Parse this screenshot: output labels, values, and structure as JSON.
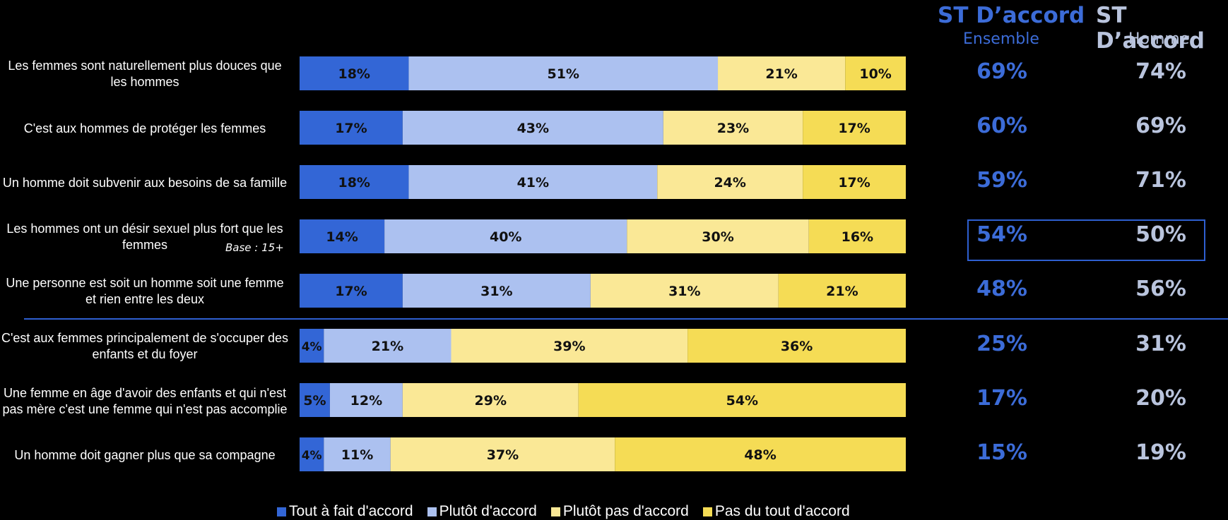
{
  "headers": {
    "ensemble": {
      "title": "ST D’accord",
      "sub": "Ensemble"
    },
    "homme": {
      "title": "ST D’accord",
      "sub": "Homme"
    }
  },
  "base_note": "Base : 15+",
  "colors": {
    "tout_a_fait": "#3366D6",
    "plutot": "#ACC1F0",
    "plutot_pas": "#FAE896",
    "pas_du_tout": "#F5DC55",
    "ensemble_text": "#3C6CD8",
    "homme_text": "#B9C4DD"
  },
  "chart_data": {
    "type": "bar",
    "orientation": "horizontal-stacked-100",
    "categories": [
      "Les femmes sont naturellement plus douces que les hommes",
      "C'est aux hommes de protéger les femmes",
      "Un homme doit subvenir aux besoins de sa famille",
      "Les hommes ont un désir sexuel plus fort que les femmes",
      "Une personne est soit un homme soit une femme et rien entre les deux",
      "C'est aux femmes principalement de s'occuper des enfants et du foyer",
      "Une femme en âge d'avoir des enfants et qui n'est pas mère c'est une femme qui n'est pas accomplie",
      "Un homme doit gagner plus que sa compagne"
    ],
    "series": [
      {
        "name": "Tout à fait d'accord",
        "values": [
          18,
          17,
          18,
          14,
          17,
          4,
          5,
          4
        ]
      },
      {
        "name": "Plutôt d'accord",
        "values": [
          51,
          43,
          41,
          40,
          31,
          21,
          12,
          11
        ]
      },
      {
        "name": "Plutôt pas d'accord",
        "values": [
          21,
          23,
          24,
          30,
          31,
          39,
          29,
          37
        ]
      },
      {
        "name": "Pas du tout d'accord",
        "values": [
          10,
          17,
          17,
          16,
          21,
          36,
          54,
          48
        ]
      }
    ],
    "st_accord_ensemble": [
      69,
      60,
      59,
      54,
      48,
      25,
      17,
      15
    ],
    "st_accord_homme": [
      74,
      69,
      71,
      50,
      56,
      31,
      20,
      19
    ],
    "unit": "%",
    "legend_position": "bottom"
  }
}
